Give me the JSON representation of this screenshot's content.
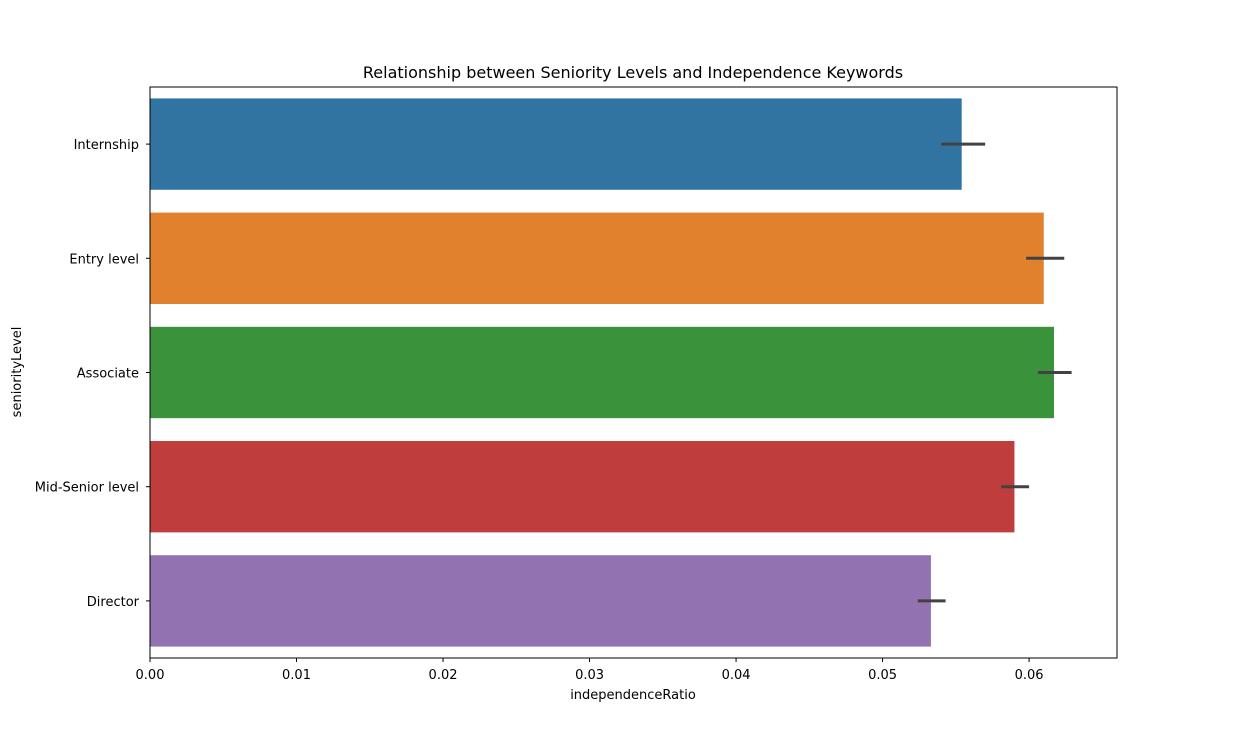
{
  "chart_data": {
    "type": "bar",
    "orientation": "horizontal",
    "title": "Relationship between Seniority Levels and Independence Keywords",
    "xlabel": "independenceRatio",
    "ylabel": "seniorityLevel",
    "categories": [
      "Internship",
      "Entry level",
      "Associate",
      "Mid-Senior level",
      "Director"
    ],
    "values": [
      0.0554,
      0.061,
      0.0617,
      0.059,
      0.0533
    ],
    "error_low": [
      0.054,
      0.0598,
      0.0606,
      0.0581,
      0.0524
    ],
    "error_high": [
      0.057,
      0.0624,
      0.0629,
      0.06,
      0.0543
    ],
    "colors": [
      "#3274a1",
      "#e1812c",
      "#3a923a",
      "#c03d3e",
      "#9372b2"
    ],
    "error_bar_color": "#424242",
    "xlim": [
      0.0,
      0.066
    ],
    "xticks": [
      0.0,
      0.01,
      0.02,
      0.03,
      0.04,
      0.05,
      0.06
    ],
    "xtick_labels": [
      "0.00",
      "0.01",
      "0.02",
      "0.03",
      "0.04",
      "0.05",
      "0.06"
    ],
    "grid": false,
    "legend": false
  }
}
